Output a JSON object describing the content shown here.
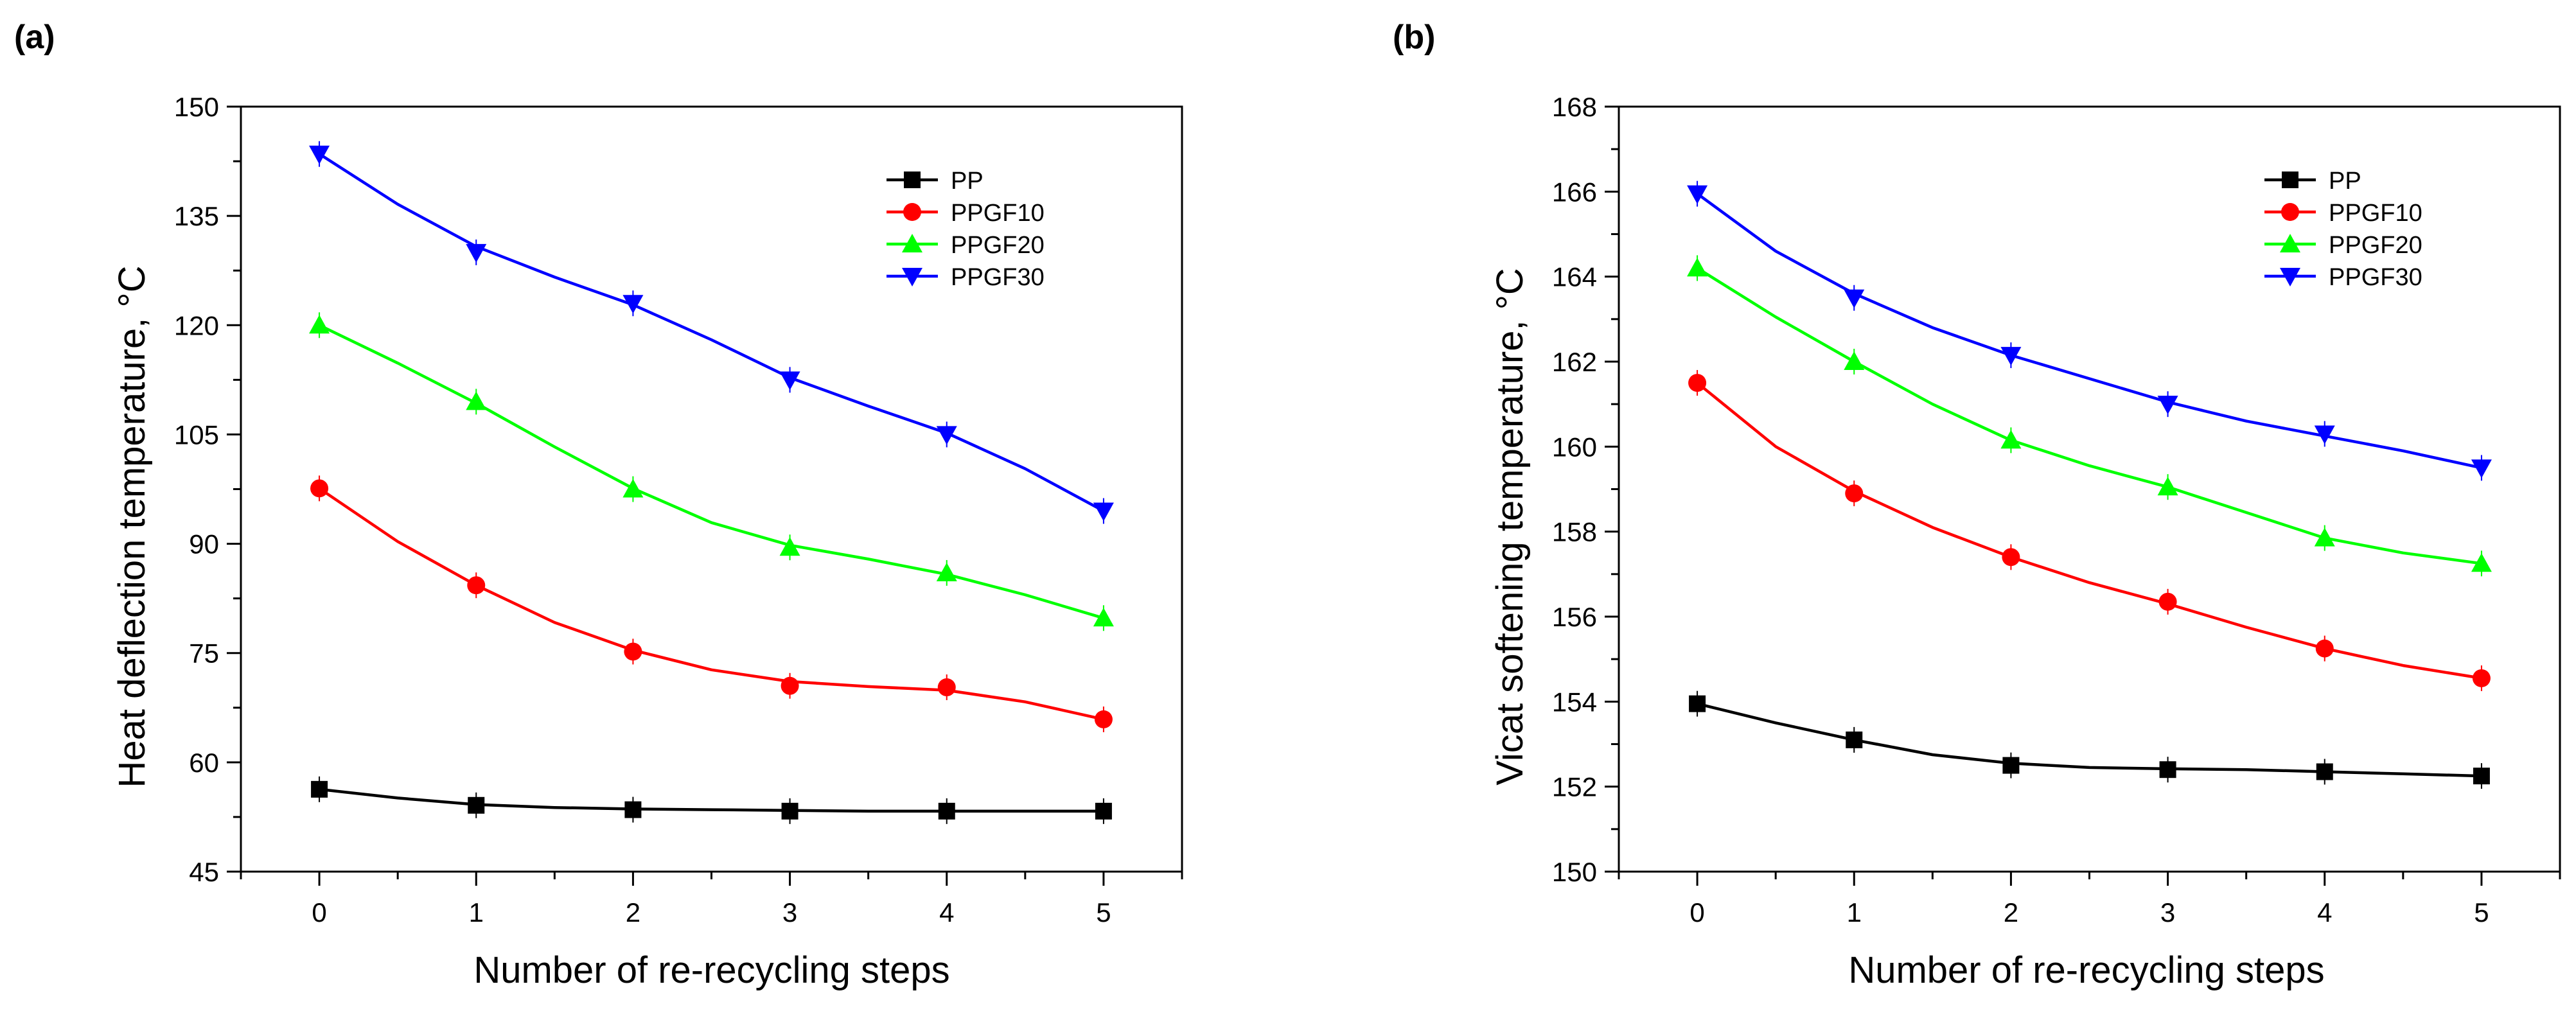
{
  "chart_data": [
    {
      "panel": "(a)",
      "type": "line",
      "xlabel": "Number of re-recycling steps",
      "ylabel": "Heat deflection temperature, °C",
      "xlim": [
        -0.5,
        5.5
      ],
      "ylim": [
        45,
        150
      ],
      "xticks": [
        0,
        1,
        2,
        3,
        4,
        5
      ],
      "yticks": [
        45,
        60,
        75,
        90,
        105,
        120,
        135,
        150
      ],
      "legend_position": "top-right",
      "grid": false,
      "series": [
        {
          "name": "PP",
          "color": "#000000",
          "marker": "square",
          "x": [
            0,
            1,
            2,
            3,
            4,
            5
          ],
          "values": [
            56.3,
            54.1,
            53.5,
            53.3,
            53.3,
            53.3
          ],
          "fit": [
            [
              0,
              56.3
            ],
            [
              0.5,
              55.1
            ],
            [
              1,
              54.2
            ],
            [
              1.5,
              53.8
            ],
            [
              2,
              53.6
            ],
            [
              2.5,
              53.5
            ],
            [
              3,
              53.4
            ],
            [
              3.5,
              53.3
            ],
            [
              4,
              53.3
            ],
            [
              4.5,
              53.3
            ],
            [
              5,
              53.3
            ]
          ]
        },
        {
          "name": "PPGF10",
          "color": "#ff0000",
          "marker": "circle",
          "x": [
            0,
            1,
            2,
            3,
            4,
            5
          ],
          "values": [
            97.6,
            84.3,
            75.2,
            70.5,
            70.3,
            65.9
          ],
          "fit": [
            [
              0,
              97.6
            ],
            [
              0.5,
              90.3
            ],
            [
              1,
              84.3
            ],
            [
              1.5,
              79.2
            ],
            [
              2,
              75.4
            ],
            [
              2.5,
              72.7
            ],
            [
              3,
              71.1
            ],
            [
              3.5,
              70.4
            ],
            [
              4,
              69.9
            ],
            [
              4.5,
              68.3
            ],
            [
              5,
              65.9
            ]
          ]
        },
        {
          "name": "PPGF20",
          "color": "#00ff00",
          "marker": "triangle-up",
          "x": [
            0,
            1,
            2,
            3,
            4,
            5
          ],
          "values": [
            120.0,
            109.5,
            97.5,
            89.5,
            86.0,
            79.8
          ],
          "fit": [
            [
              0,
              120.0
            ],
            [
              0.5,
              114.8
            ],
            [
              1,
              109.3
            ],
            [
              1.5,
              103.3
            ],
            [
              2,
              97.6
            ],
            [
              2.5,
              92.9
            ],
            [
              3,
              89.8
            ],
            [
              3.5,
              87.9
            ],
            [
              4,
              85.8
            ],
            [
              4.5,
              83.0
            ],
            [
              5,
              79.8
            ]
          ]
        },
        {
          "name": "PPGF30",
          "color": "#0000ff",
          "marker": "triangle-down",
          "x": [
            0,
            1,
            2,
            3,
            4,
            5
          ],
          "values": [
            143.5,
            130.0,
            123.0,
            112.5,
            105.0,
            94.5
          ],
          "fit": [
            [
              0,
              143.5
            ],
            [
              0.5,
              136.6
            ],
            [
              1,
              130.8
            ],
            [
              1.5,
              126.6
            ],
            [
              2,
              122.8
            ],
            [
              2.5,
              118.0
            ],
            [
              3,
              112.8
            ],
            [
              3.5,
              108.9
            ],
            [
              4,
              105.2
            ],
            [
              4.5,
              100.3
            ],
            [
              5,
              94.5
            ]
          ]
        }
      ]
    },
    {
      "panel": "(b)",
      "type": "line",
      "xlabel": "Number of re-recycling steps",
      "ylabel": "Vicat softening temperature, °C",
      "xlim": [
        -0.5,
        5.5
      ],
      "ylim": [
        150,
        168
      ],
      "xticks": [
        0,
        1,
        2,
        3,
        4,
        5
      ],
      "yticks": [
        150,
        152,
        154,
        156,
        158,
        160,
        162,
        164,
        166,
        168
      ],
      "legend_position": "top-right",
      "grid": false,
      "series": [
        {
          "name": "PP",
          "color": "#000000",
          "marker": "square",
          "x": [
            0,
            1,
            2,
            3,
            4,
            5
          ],
          "values": [
            153.95,
            153.1,
            152.5,
            152.4,
            152.35,
            152.25
          ],
          "fit": [
            [
              0,
              153.95
            ],
            [
              0.5,
              153.5
            ],
            [
              1,
              153.1
            ],
            [
              1.5,
              152.75
            ],
            [
              2,
              152.55
            ],
            [
              2.5,
              152.45
            ],
            [
              3,
              152.42
            ],
            [
              3.5,
              152.4
            ],
            [
              4,
              152.35
            ],
            [
              4.5,
              152.3
            ],
            [
              5,
              152.25
            ]
          ]
        },
        {
          "name": "PPGF10",
          "color": "#ff0000",
          "marker": "circle",
          "x": [
            0,
            1,
            2,
            3,
            4,
            5
          ],
          "values": [
            161.5,
            158.9,
            157.4,
            156.35,
            155.25,
            154.55
          ],
          "fit": [
            [
              0,
              161.5
            ],
            [
              0.5,
              160.0
            ],
            [
              1,
              158.95
            ],
            [
              1.5,
              158.1
            ],
            [
              2,
              157.4
            ],
            [
              2.5,
              156.8
            ],
            [
              3,
              156.3
            ],
            [
              3.5,
              155.75
            ],
            [
              4,
              155.25
            ],
            [
              4.5,
              154.85
            ],
            [
              5,
              154.55
            ]
          ]
        },
        {
          "name": "PPGF20",
          "color": "#00ff00",
          "marker": "triangle-up",
          "x": [
            0,
            1,
            2,
            3,
            4,
            5
          ],
          "values": [
            164.2,
            162.0,
            160.15,
            159.05,
            157.85,
            157.25
          ],
          "fit": [
            [
              0,
              164.2
            ],
            [
              0.5,
              163.05
            ],
            [
              1,
              162.0
            ],
            [
              1.5,
              161.0
            ],
            [
              2,
              160.15
            ],
            [
              2.5,
              159.55
            ],
            [
              3,
              159.05
            ],
            [
              3.5,
              158.45
            ],
            [
              4,
              157.85
            ],
            [
              4.5,
              157.5
            ],
            [
              5,
              157.25
            ]
          ]
        },
        {
          "name": "PPGF30",
          "color": "#0000ff",
          "marker": "triangle-down",
          "x": [
            0,
            1,
            2,
            3,
            4,
            5
          ],
          "values": [
            165.95,
            163.5,
            162.15,
            161.0,
            160.3,
            159.5
          ],
          "fit": [
            [
              0,
              165.95
            ],
            [
              0.5,
              164.6
            ],
            [
              1,
              163.6
            ],
            [
              1.5,
              162.8
            ],
            [
              2,
              162.15
            ],
            [
              2.5,
              161.6
            ],
            [
              3,
              161.05
            ],
            [
              3.5,
              160.6
            ],
            [
              4,
              160.25
            ],
            [
              4.5,
              159.9
            ],
            [
              5,
              159.5
            ]
          ]
        }
      ]
    }
  ]
}
